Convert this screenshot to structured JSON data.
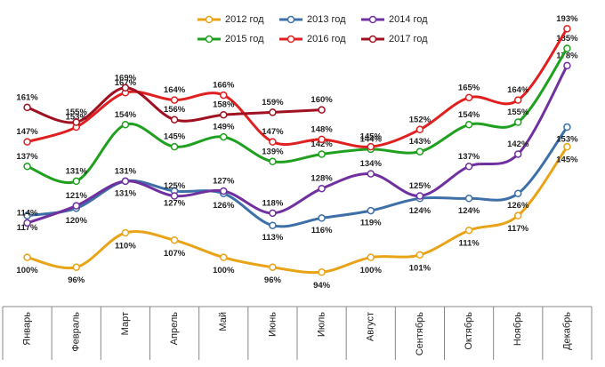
{
  "chart_data": {
    "type": "line",
    "categories": [
      "Январь",
      "Февраль",
      "Март",
      "Апрель",
      "Май",
      "Июнь",
      "Июль",
      "Август",
      "Сентябрь",
      "Октябрь",
      "Ноябрь",
      "Декабрь"
    ],
    "ylim": [
      80,
      200
    ],
    "series": [
      {
        "name": "2012 год",
        "color": "#E8A317",
        "values": [
          100,
          96,
          110,
          107,
          100,
          96,
          94,
          100,
          101,
          111,
          117,
          145
        ],
        "value_labels": [
          "100%",
          "96%",
          "110%",
          "107%",
          "100%",
          "96%",
          "94%",
          "100%",
          "101%",
          "111%",
          "117%",
          "145%"
        ]
      },
      {
        "name": "2013 год",
        "color": "#3D6FA8",
        "values": [
          117,
          120,
          131,
          127,
          126,
          113,
          116,
          119,
          124,
          124,
          126,
          153
        ],
        "value_labels": [
          "117%",
          "120%",
          "131%",
          "127%",
          "126%",
          "113%",
          "116%",
          "119%",
          "124%",
          "124%",
          "126%",
          "153%"
        ]
      },
      {
        "name": "2014 год",
        "color": "#7030A0",
        "values": [
          114,
          121,
          131,
          125,
          127,
          118,
          128,
          134,
          125,
          137,
          142,
          178
        ],
        "value_labels": [
          "114%",
          "121%",
          "131%",
          "125%",
          "127%",
          "118%",
          "128%",
          "134%",
          "125%",
          "137%",
          "142%",
          "178%"
        ]
      },
      {
        "name": "2015 год",
        "color": "#1FA01F",
        "values": [
          137,
          131,
          154,
          145,
          149,
          139,
          142,
          144,
          143,
          154,
          155,
          185
        ],
        "value_labels": [
          "137%",
          "131%",
          "154%",
          "145%",
          "149%",
          "139%",
          "142%",
          "144%",
          "143%",
          "154%",
          "155%",
          "185%"
        ]
      },
      {
        "name": "2016 год",
        "color": "#E02020",
        "values": [
          147,
          153,
          167,
          164,
          166,
          147,
          148,
          145,
          152,
          165,
          164,
          193
        ],
        "value_labels": [
          "147%",
          "153%",
          "167%",
          "164%",
          "166%",
          "147%",
          "148%",
          "145%",
          "152%",
          "165%",
          "164%",
          "193%"
        ]
      },
      {
        "name": "2017 год",
        "color": "#A01020",
        "values": [
          161,
          155,
          169,
          156,
          158,
          159,
          160,
          null,
          null,
          null,
          null,
          null
        ],
        "value_labels": [
          "161%",
          "155%",
          "169%",
          "156%",
          "158%",
          "159%",
          "160%",
          null,
          null,
          null,
          null,
          null
        ]
      }
    ]
  }
}
